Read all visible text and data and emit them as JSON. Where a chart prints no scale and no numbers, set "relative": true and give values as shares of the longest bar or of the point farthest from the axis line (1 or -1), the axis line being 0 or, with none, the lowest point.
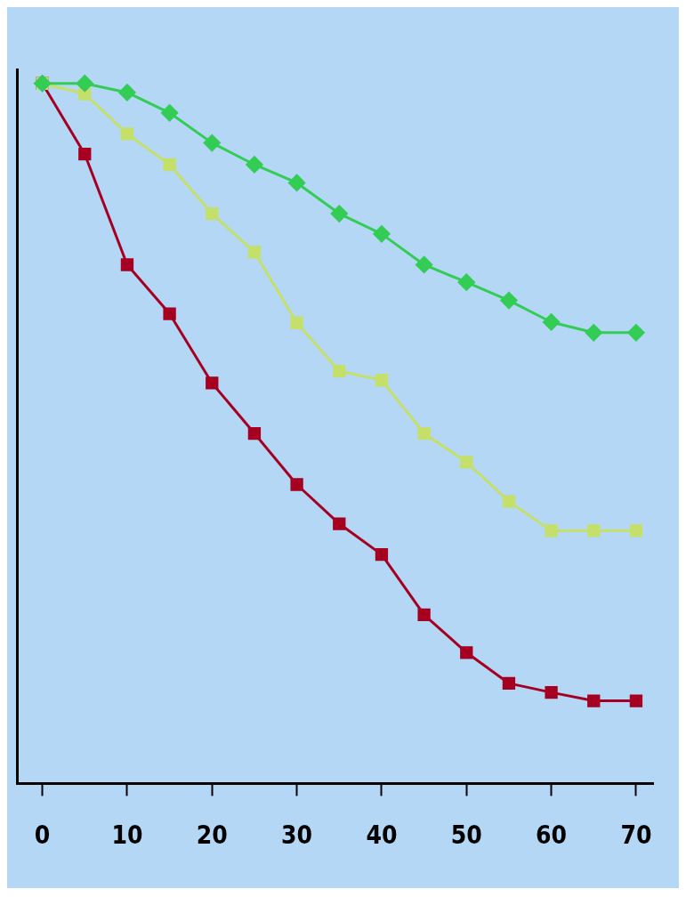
{
  "chart_data": {
    "type": "line",
    "relative": true,
    "x": [
      0,
      5,
      10,
      15,
      20,
      25,
      30,
      35,
      40,
      45,
      50,
      55,
      60,
      65,
      70
    ],
    "xlim": [
      -3,
      72
    ],
    "xticks": [
      0,
      10,
      20,
      30,
      40,
      50,
      60,
      70
    ],
    "grid": false,
    "legend": false,
    "line_style": "solid",
    "series": [
      {
        "color": "#33cc55",
        "marker": "diamond",
        "values": [
          1,
          1,
          0.987,
          0.958,
          0.915,
          0.884,
          0.858,
          0.814,
          0.785,
          0.741,
          0.716,
          0.69,
          0.659,
          0.644,
          0.644
        ]
      },
      {
        "color": "#c5e06a",
        "marker": "square",
        "values": [
          1,
          0.985,
          0.928,
          0.884,
          0.814,
          0.759,
          0.658,
          0.589,
          0.576,
          0.5,
          0.459,
          0.403,
          0.361,
          0.361,
          0.361
        ]
      },
      {
        "color": "#a50021",
        "marker": "square",
        "values": [
          1,
          0.899,
          0.741,
          0.671,
          0.572,
          0.5,
          0.427,
          0.371,
          0.327,
          0.241,
          0.187,
          0.143,
          0.13,
          0.118,
          0.118
        ]
      }
    ]
  }
}
